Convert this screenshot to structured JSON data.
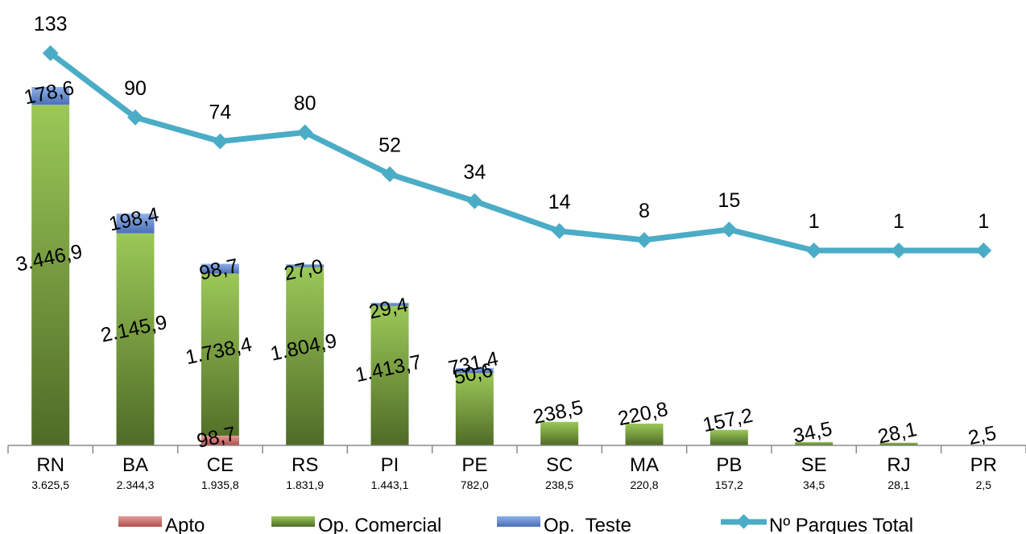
{
  "chart_data": {
    "type": "bar",
    "stacked": true,
    "categories": [
      "RN",
      "BA",
      "CE",
      "RS",
      "PI",
      "PE",
      "SC",
      "MA",
      "PB",
      "SE",
      "RJ",
      "PR"
    ],
    "category_totals": [
      "3.625,5",
      "2.344,3",
      "1.935,8",
      "1.831,9",
      "1.443,1",
      "782,0",
      "238,5",
      "220,8",
      "157,2",
      "34,5",
      "28,1",
      "2,5"
    ],
    "series": [
      {
        "name": "Apto",
        "color": "#c0504d",
        "values": [
          0,
          0,
          98.7,
          0,
          0,
          0,
          0,
          0,
          0,
          0,
          0,
          0
        ],
        "labels": [
          "",
          "",
          "98,7",
          "",
          "",
          "",
          "",
          "",
          "",
          "",
          "",
          ""
        ]
      },
      {
        "name": "Op. Comercial",
        "color": "#8db346",
        "values": [
          3446.9,
          2145.9,
          1738.4,
          1804.9,
          1413.7,
          731.4,
          238.5,
          220.8,
          157.2,
          34.5,
          28.1,
          2.5
        ],
        "labels": [
          "3.446,9",
          "2.145,9",
          "1.738,4",
          "1.804,9",
          "1.413,7",
          "731,4",
          "238,5",
          "220,8",
          "157,2",
          "34,5",
          "28,1",
          "2,5"
        ]
      },
      {
        "name": "Op.  Teste",
        "color": "#5b7fc4",
        "values": [
          178.6,
          198.4,
          98.7,
          27.0,
          29.4,
          50.6,
          0,
          0,
          0,
          0,
          0,
          0
        ],
        "labels": [
          "178,6",
          "198,4",
          "98,7",
          "27,0",
          "29,4",
          "50,6",
          "",
          "",
          "",
          "",
          "",
          ""
        ]
      }
    ],
    "line_series": {
      "name": "Nº Parques Total",
      "color": "#4bacc6",
      "values": [
        133,
        90,
        74,
        80,
        52,
        34,
        14,
        8,
        15,
        1,
        1,
        1
      ]
    },
    "ylim": [
      0,
      3625.5
    ],
    "line_ylim": [
      1,
      133
    ],
    "grid": false,
    "legend": "bottom"
  }
}
